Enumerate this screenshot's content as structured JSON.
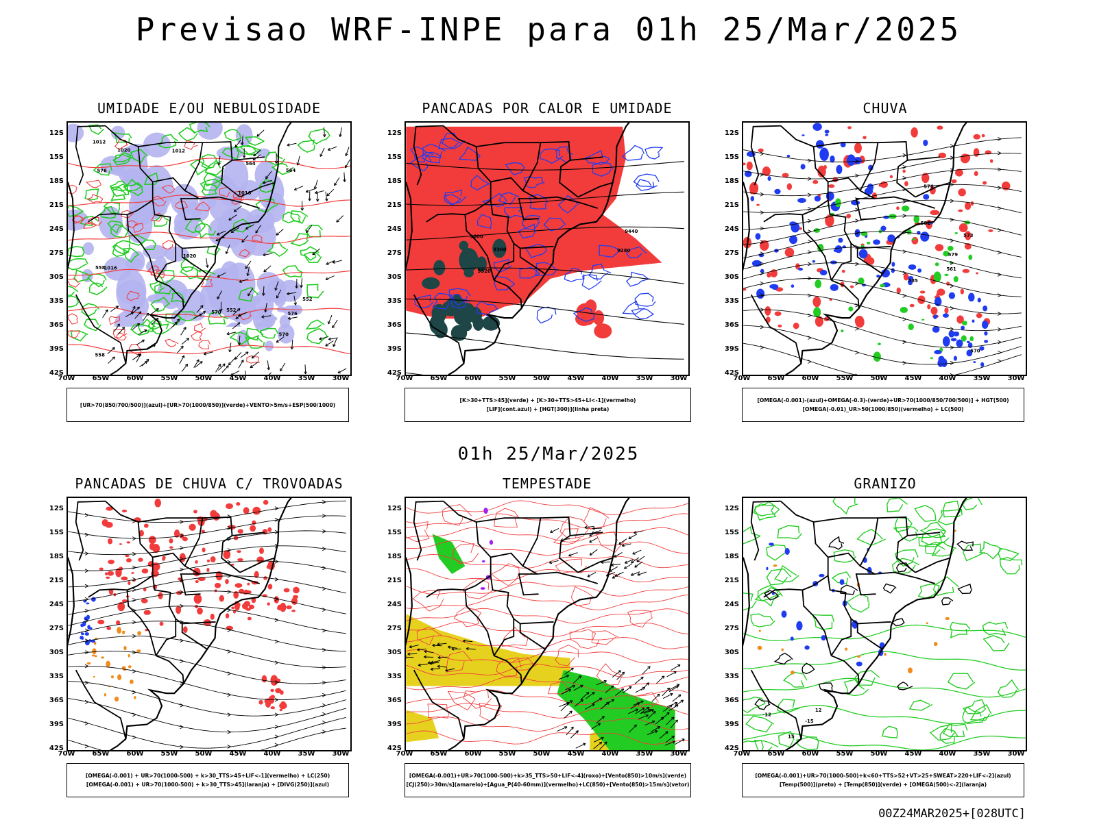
{
  "header": {
    "title": "Previsao WRF-INPE  para 01h 25/Mar/2025",
    "middle_date": "01h 25/Mar/2025",
    "model_run_stamp": "00Z24MAR2025+[028UTC]"
  },
  "colors": {
    "red": "#f23c3c",
    "green": "#22cc22",
    "blue": "#1f3cf0",
    "lavender": "#b4b4f0",
    "dark_teal": "#1e4646",
    "yellow": "#e6d21e",
    "orange": "#f08c1e",
    "purple": "#a020f0",
    "black": "#000000"
  },
  "chart_data": [
    {
      "type": "map",
      "title": "UMIDADE E/OU NEBULOSIDADE",
      "lat_ticks": [
        "12S",
        "15S",
        "18S",
        "21S",
        "24S",
        "27S",
        "30S",
        "33S",
        "36S",
        "39S",
        "42S"
      ],
      "lon_ticks": [
        "70W",
        "65W",
        "60W",
        "55W",
        "50W",
        "45W",
        "40W",
        "35W",
        "30W"
      ],
      "contour_labels": [
        "1012",
        "1016",
        "1020",
        "576",
        "570",
        "564",
        "558",
        "552"
      ],
      "legend": [
        "[UR>70(850/700/500)](azul)+[UR>70(1000/850)](verde)+VENTO>5m/s+ESP(500/1000)"
      ]
    },
    {
      "type": "map",
      "title": "PANCADAS POR CALOR E UMIDADE",
      "lat_ticks": [
        "12S",
        "15S",
        "18S",
        "21S",
        "24S",
        "27S",
        "30S",
        "33S",
        "36S",
        "39S",
        "42S"
      ],
      "lon_ticks": [
        "70W",
        "65W",
        "60W",
        "55W",
        "50W",
        "45W",
        "40W",
        "35W",
        "30W"
      ],
      "contour_labels": [
        "9600",
        "9520",
        "9440",
        "9360",
        "9280"
      ],
      "legend": [
        "[K>30+TTS>45](verde) + [K>30+TTS>45+LI<-1](vermelho)",
        "[LIF](cont.azul) + [HGT(300)](linha preta)"
      ]
    },
    {
      "type": "map",
      "title": "CHUVA",
      "lat_ticks": [
        "12S",
        "15S",
        "18S",
        "21S",
        "24S",
        "27S",
        "30S",
        "33S",
        "36S",
        "39S",
        "42S"
      ],
      "lon_ticks": [
        "70W",
        "65W",
        "60W",
        "55W",
        "50W",
        "45W",
        "40W",
        "35W",
        "30W"
      ],
      "contour_labels": [
        "585",
        "582",
        "579",
        "576",
        "573",
        "570",
        "561"
      ],
      "legend": [
        "[OMEGA(-0.001)-(azul)+OMEGA(-0.3)-(verde)+UR>70(1000/850/700/500)] + HGT(500)",
        "[OMEGA(-0.01)_UR>50(1000/850)(vermelho) + LC(500)"
      ]
    },
    {
      "type": "map",
      "title": "PANCADAS DE CHUVA C/ TROVOADAS",
      "lat_ticks": [
        "12S",
        "15S",
        "18S",
        "21S",
        "24S",
        "27S",
        "30S",
        "33S",
        "36S",
        "39S",
        "42S"
      ],
      "lon_ticks": [
        "70W",
        "65W",
        "60W",
        "55W",
        "50W",
        "45W",
        "40W",
        "35W",
        "30W"
      ],
      "contour_labels": [],
      "legend": [
        "[OMEGA(-0.001) + UR>70(1000-500) + k>30_TTS>45+LIF<-1](vermelho) + LC(250)",
        "[OMEGA(-0.001) + UR>70(1000-500) + k>30_TTS>45](laranja) + [DIVG(250)](azul)"
      ]
    },
    {
      "type": "map",
      "title": "TEMPESTADE",
      "lat_ticks": [
        "12S",
        "15S",
        "18S",
        "21S",
        "24S",
        "27S",
        "30S",
        "33S",
        "36S",
        "39S",
        "42S"
      ],
      "lon_ticks": [
        "70W",
        "65W",
        "60W",
        "55W",
        "50W",
        "45W",
        "40W",
        "35W",
        "30W"
      ],
      "contour_labels": [],
      "legend": [
        "[OMEGA(-0.001)+UR>70(1000-500)+k>35_TTS>50+LIF<-4](roxo)+[Vento(850)>10m/s](verde)",
        "[CJ(250)>30m/s](amarelo)+[Agua_P(40-60mm)](vermelho)+LC(850)+[Vento(850)>15m/s](vetor)"
      ]
    },
    {
      "type": "map",
      "title": "GRANIZO",
      "lat_ticks": [
        "12S",
        "15S",
        "18S",
        "21S",
        "24S",
        "27S",
        "30S",
        "33S",
        "36S",
        "39S",
        "42S"
      ],
      "lon_ticks": [
        "70W",
        "65W",
        "60W",
        "55W",
        "50W",
        "45W",
        "40W",
        "35W",
        "30W"
      ],
      "contour_labels": [
        "-12",
        "-15",
        "12",
        "15"
      ],
      "legend": [
        "[OMEGA(-0.001)+UR>70(1000-500)+k<60+TTS>52+VT>25+SWEAT>220+LIF<-2](azul)",
        "[Temp(500)](preto) + [Temp(850)](verde) + [OMEGA(500)<-2](laranja)"
      ]
    }
  ]
}
